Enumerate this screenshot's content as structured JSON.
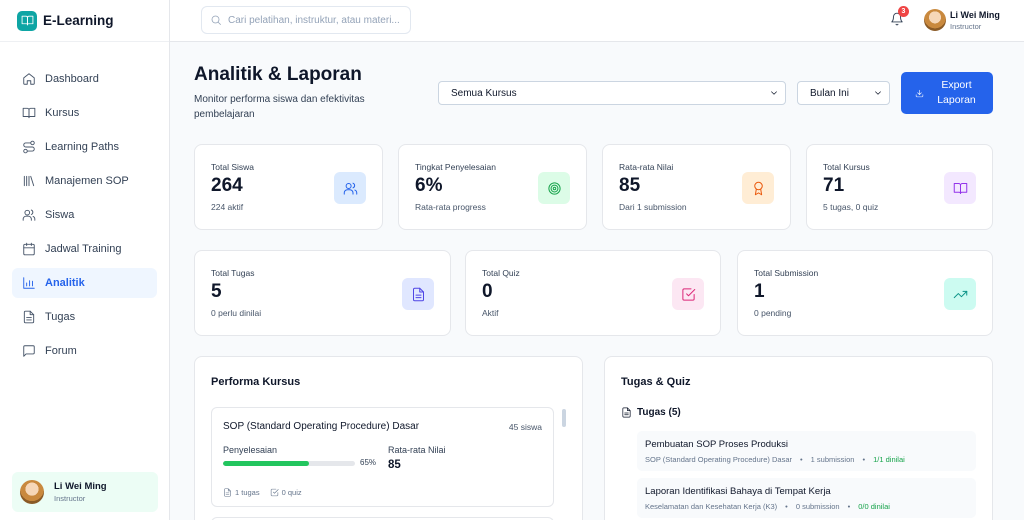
{
  "app": {
    "name": "E-Learning"
  },
  "sidebar": {
    "items": [
      {
        "label": "Dashboard",
        "icon": "home-icon",
        "active": false
      },
      {
        "label": "Kursus",
        "icon": "book-icon",
        "active": false
      },
      {
        "label": "Learning Paths",
        "icon": "route-icon",
        "active": false
      },
      {
        "label": "Manajemen SOP",
        "icon": "library-icon",
        "active": false
      },
      {
        "label": "Siswa",
        "icon": "users-icon",
        "active": false
      },
      {
        "label": "Jadwal Training",
        "icon": "calendar-icon",
        "active": false
      },
      {
        "label": "Analitik",
        "icon": "bar-chart-icon",
        "active": true
      },
      {
        "label": "Tugas",
        "icon": "file-text-icon",
        "active": false
      },
      {
        "label": "Forum",
        "icon": "message-square-icon",
        "active": false
      }
    ],
    "user": {
      "name": "Li Wei Ming",
      "role": "Instructor"
    }
  },
  "topbar": {
    "search_placeholder": "Cari pelatihan, instruktur, atau materi...",
    "notification_count": "3",
    "user": {
      "name": "Li Wei Ming",
      "role": "Instructor"
    }
  },
  "page": {
    "title": "Analitik & Laporan",
    "subtitle": "Monitor performa siswa dan efektivitas pembelajaran",
    "filter_course": "Semua Kursus",
    "filter_period": "Bulan Ini",
    "export_label": "Export Laporan"
  },
  "stats_row1": [
    {
      "label": "Total Siswa",
      "value": "264",
      "sub": "224 aktif",
      "icon": "users-icon",
      "color": "#dbeafe",
      "icon_color": "#2563eb"
    },
    {
      "label": "Tingkat Penyelesaian",
      "value": "6%",
      "sub": "Rata-rata progress",
      "icon": "target-icon",
      "color": "#dcfce7",
      "icon_color": "#16a34a"
    },
    {
      "label": "Rata-rata Nilai",
      "value": "85",
      "sub": "Dari 1 submission",
      "icon": "award-icon",
      "color": "#ffedd5",
      "icon_color": "#ea580c"
    },
    {
      "label": "Total Kursus",
      "value": "71",
      "sub": "5 tugas, 0 quiz",
      "icon": "book-open-icon",
      "color": "#f3e8ff",
      "icon_color": "#9333ea"
    }
  ],
  "stats_row2": [
    {
      "label": "Total Tugas",
      "value": "5",
      "sub": "0 perlu dinilai",
      "icon": "file-text-icon",
      "color": "#e0e7ff",
      "icon_color": "#4f46e5"
    },
    {
      "label": "Total Quiz",
      "value": "0",
      "sub": "Aktif",
      "icon": "check-square-icon",
      "color": "#fce7f3",
      "icon_color": "#db2777"
    },
    {
      "label": "Total Submission",
      "value": "1",
      "sub": "0 pending",
      "icon": "trending-up-icon",
      "color": "#ccfbf1",
      "icon_color": "#0d9488"
    }
  ],
  "course_performance": {
    "title": "Performa Kursus",
    "courses": [
      {
        "name": "SOP (Standard Operating Procedure) Dasar",
        "students": "45 siswa",
        "completion_label": "Penyelesaian",
        "completion_pct": "65%",
        "completion_value": 65,
        "grade_label": "Rata-rata Nilai",
        "grade": "85",
        "tasks": "1 tugas",
        "quizzes": "0 quiz"
      }
    ]
  },
  "tasks_quiz": {
    "title": "Tugas & Quiz",
    "tasks_header": "Tugas (5)",
    "tasks": [
      {
        "title": "Pembuatan SOP Proses Produksi",
        "course": "SOP (Standard Operating Procedure) Dasar",
        "submissions": "1 submission",
        "graded": "1/1 dinilai"
      },
      {
        "title": "Laporan Identifikasi Bahaya di Tempat Kerja",
        "course": "Keselamatan dan Kesehatan Kerja (K3)",
        "submissions": "0 submission",
        "graded": "0/0 dinilai"
      }
    ]
  }
}
